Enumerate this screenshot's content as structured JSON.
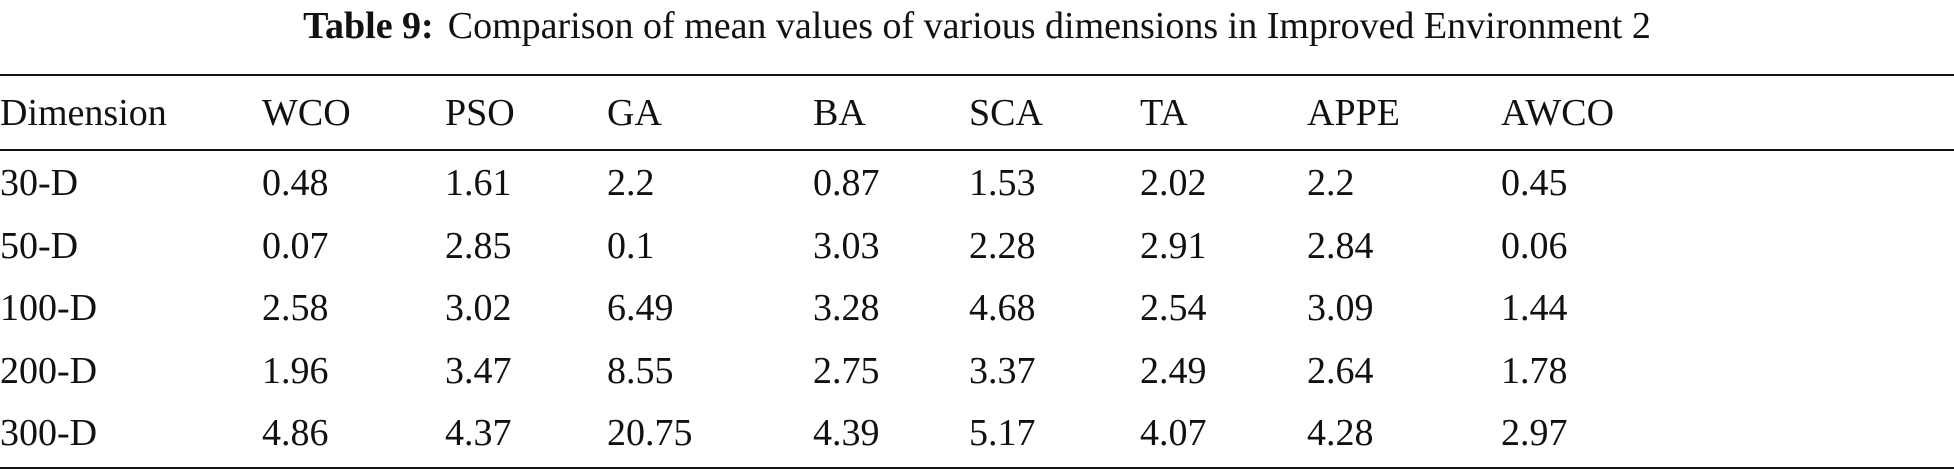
{
  "caption": {
    "label": "Table 9:",
    "text": "Comparison of mean values of various dimensions in Improved Environment 2"
  },
  "table": {
    "headers": [
      "Dimension",
      "WCO",
      "PSO",
      "GA",
      "BA",
      "SCA",
      "TA",
      "APPE",
      "AWCO"
    ],
    "rows": [
      [
        "30-D",
        "0.48",
        "1.61",
        "2.2",
        "0.87",
        "1.53",
        "2.02",
        "2.2",
        "0.45"
      ],
      [
        "50-D",
        "0.07",
        "2.85",
        "0.1",
        "3.03",
        "2.28",
        "2.91",
        "2.84",
        "0.06"
      ],
      [
        "100-D",
        "2.58",
        "3.02",
        "6.49",
        "3.28",
        "4.68",
        "2.54",
        "3.09",
        "1.44"
      ],
      [
        "200-D",
        "1.96",
        "3.47",
        "8.55",
        "2.75",
        "3.37",
        "2.49",
        "2.64",
        "1.78"
      ],
      [
        "300-D",
        "4.86",
        "4.37",
        "20.75",
        "4.39",
        "5.17",
        "4.07",
        "4.28",
        "2.97"
      ]
    ]
  }
}
